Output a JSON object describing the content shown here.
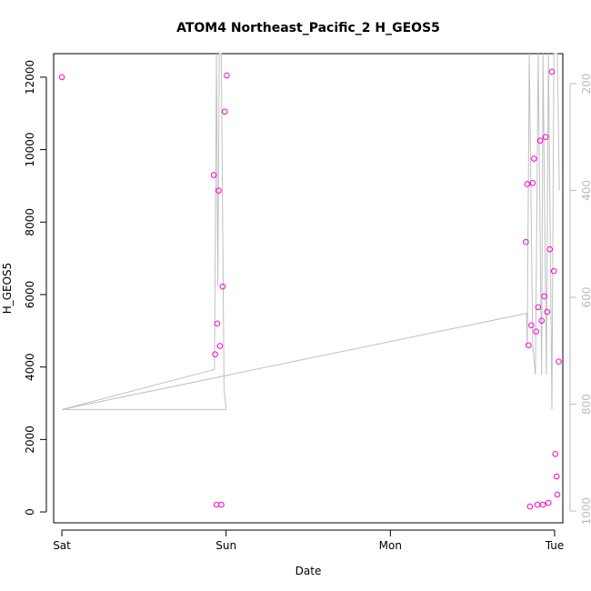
{
  "chart_data": {
    "type": "scatter",
    "title": "ATOM4 Northeast_Pacific_2 H_GEOS5",
    "xlabel": "Date",
    "ylabel": "H_GEOS5",
    "x_ticks": [
      "Sat",
      "Sun",
      "Mon",
      "Tue"
    ],
    "x_range_hours": [
      -1.2,
      73.2
    ],
    "ylim": [
      -300,
      12650
    ],
    "y_ticks": [
      0,
      2000,
      4000,
      6000,
      8000,
      10000,
      12000
    ],
    "right_axis": {
      "ticks": [
        200,
        400,
        600,
        800,
        1000
      ],
      "ylim": [
        1022,
        144
      ],
      "color": "#bbbbbb",
      "description": "pressure (flight track line)"
    },
    "point_color": "#ff00cc",
    "line_color": "#c0c0c0",
    "points": [
      {
        "t": 0.0,
        "h": 12000
      },
      {
        "t": 22.2,
        "h": 9300
      },
      {
        "t": 22.4,
        "h": 4350
      },
      {
        "t": 22.6,
        "h": 200
      },
      {
        "t": 22.7,
        "h": 5200
      },
      {
        "t": 22.9,
        "h": 8870
      },
      {
        "t": 23.1,
        "h": 4580
      },
      {
        "t": 23.3,
        "h": 200
      },
      {
        "t": 23.5,
        "h": 6220
      },
      {
        "t": 23.8,
        "h": 11050
      },
      {
        "t": 24.1,
        "h": 12050
      },
      {
        "t": 67.8,
        "h": 7450
      },
      {
        "t": 68.0,
        "h": 9050
      },
      {
        "t": 68.2,
        "h": 4600
      },
      {
        "t": 68.4,
        "h": 150
      },
      {
        "t": 68.6,
        "h": 5150
      },
      {
        "t": 68.8,
        "h": 9080
      },
      {
        "t": 69.0,
        "h": 9750
      },
      {
        "t": 69.3,
        "h": 4980
      },
      {
        "t": 69.5,
        "h": 200
      },
      {
        "t": 69.6,
        "h": 5650
      },
      {
        "t": 69.9,
        "h": 10250
      },
      {
        "t": 70.1,
        "h": 5280
      },
      {
        "t": 70.3,
        "h": 200
      },
      {
        "t": 70.5,
        "h": 5950
      },
      {
        "t": 70.7,
        "h": 10350
      },
      {
        "t": 70.9,
        "h": 5520
      },
      {
        "t": 71.1,
        "h": 250
      },
      {
        "t": 71.3,
        "h": 7250
      },
      {
        "t": 71.6,
        "h": 12150
      },
      {
        "t": 71.9,
        "h": 6650
      },
      {
        "t": 72.1,
        "h": 1600
      },
      {
        "t": 72.3,
        "h": 980
      },
      {
        "t": 72.4,
        "h": 480
      },
      {
        "t": 72.6,
        "h": 4150
      }
    ],
    "line": [
      {
        "t": 0.0,
        "p": 810
      },
      {
        "t": 22.3,
        "p": 735
      },
      {
        "t": 22.6,
        "p": 144
      },
      {
        "t": 22.8,
        "p": 580
      },
      {
        "t": 23.0,
        "p": 144
      },
      {
        "t": 23.3,
        "p": 144
      },
      {
        "t": 23.7,
        "p": 770
      },
      {
        "t": 24.0,
        "p": 810
      },
      {
        "t": 0.0,
        "p": 810
      },
      {
        "t": 67.9,
        "p": 630
      },
      {
        "t": 68.0,
        "p": 690
      },
      {
        "t": 68.3,
        "p": 144
      },
      {
        "t": 68.8,
        "p": 690
      },
      {
        "t": 69.2,
        "p": 745
      },
      {
        "t": 69.6,
        "p": 144
      },
      {
        "t": 70.1,
        "p": 745
      },
      {
        "t": 70.3,
        "p": 144
      },
      {
        "t": 70.8,
        "p": 745
      },
      {
        "t": 71.1,
        "p": 144
      },
      {
        "t": 71.6,
        "p": 810
      },
      {
        "t": 71.9,
        "p": 144
      },
      {
        "t": 72.4,
        "p": 144
      },
      {
        "t": 72.7,
        "p": 400
      }
    ]
  }
}
